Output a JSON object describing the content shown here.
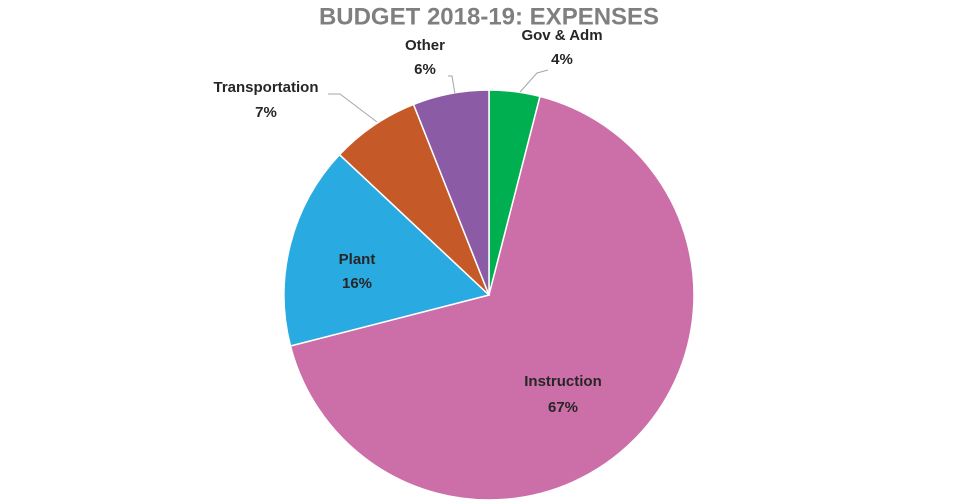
{
  "chart_data": {
    "type": "pie",
    "title": "BUDGET 2018-19:  EXPENSES",
    "categories": [
      "Gov & Adm",
      "Instruction",
      "Plant",
      "Transportation",
      "Other"
    ],
    "values": [
      4,
      67,
      16,
      7,
      6
    ],
    "value_labels": [
      "4%",
      "67%",
      "16%",
      "7%",
      "6%"
    ],
    "colors": [
      "#00b050",
      "#cc6fa8",
      "#29abe2",
      "#c55a28",
      "#8b5ba6"
    ]
  }
}
